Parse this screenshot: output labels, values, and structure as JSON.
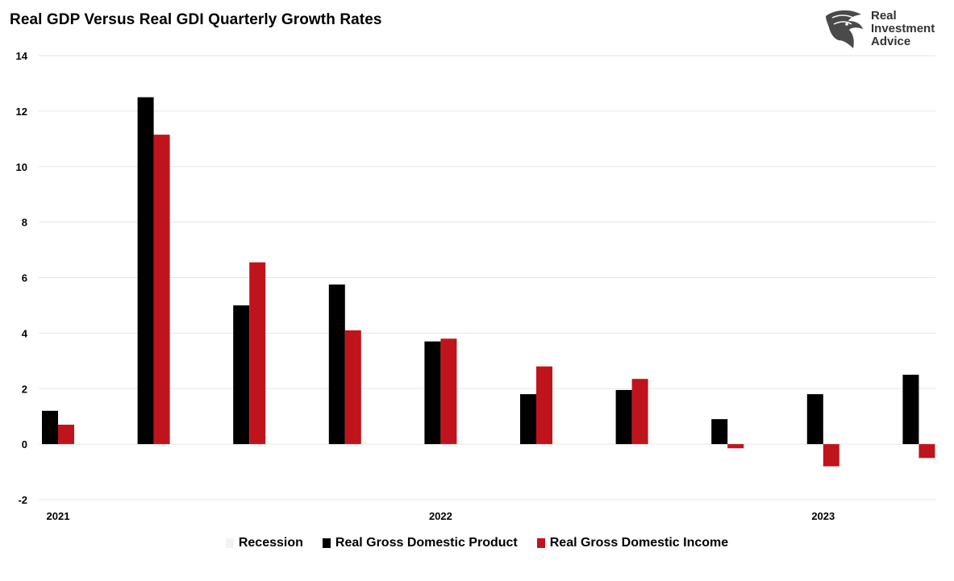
{
  "title": "Real GDP Versus Real GDI Quarterly Growth Rates",
  "logo": {
    "line1": "Real",
    "line2": "Investment",
    "line3": "Advice"
  },
  "legend": [
    {
      "label": "Recession",
      "color": "#f2f2f2"
    },
    {
      "label": "Real Gross Domestic Product",
      "color": "#000000"
    },
    {
      "label": "Real Gross Domestic Income",
      "color": "#c0141c"
    }
  ],
  "chart_data": {
    "type": "bar",
    "title": "Real GDP Versus Real GDI Quarterly Growth Rates",
    "xlabel": "",
    "ylabel": "",
    "ylim": [
      -2,
      14
    ],
    "yticks": [
      14,
      12,
      10,
      8,
      6,
      4,
      2,
      0,
      -2
    ],
    "grid": true,
    "legend_position": "bottom",
    "x_tick_labels": [
      {
        "label": "2021",
        "quarter_index": 0
      },
      {
        "label": "2022",
        "quarter_index": 4
      },
      {
        "label": "2023",
        "quarter_index": 8
      }
    ],
    "series": [
      {
        "name": "Real Gross Domestic Product",
        "color": "#000000",
        "values": [
          1.2,
          12.5,
          5.0,
          5.75,
          3.7,
          1.8,
          1.95,
          0.9,
          1.8,
          2.5
        ]
      },
      {
        "name": "Real Gross Domestic Income",
        "color": "#c0141c",
        "values": [
          0.7,
          11.15,
          6.55,
          4.1,
          3.8,
          2.8,
          2.35,
          -0.15,
          -0.8,
          -0.5
        ]
      }
    ]
  }
}
